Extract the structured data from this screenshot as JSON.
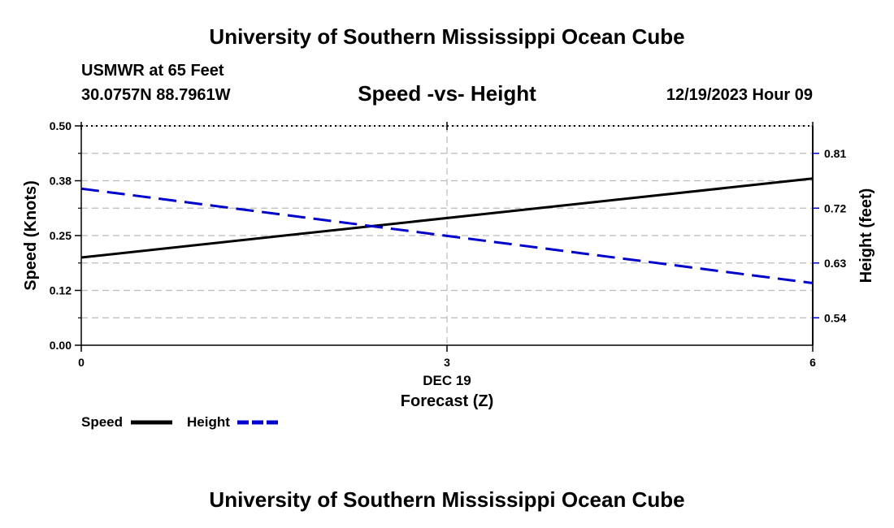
{
  "header": {
    "title": "University of Southern Mississippi Ocean Cube",
    "station": "USMWR at 65 Feet",
    "coordinates": "30.0757N  88.7961W",
    "chart_title": "Speed -vs- Height",
    "datetime": "12/19/2023 Hour 09"
  },
  "footer": {
    "title": "University of Southern Mississippi Ocean Cube"
  },
  "colors": {
    "speed": "#000000",
    "height": "#0000cc",
    "grid": "#bbbbbb"
  },
  "chart_data": {
    "type": "line",
    "title": "Speed -vs- Height",
    "xlabel": "Forecast (Z)",
    "x_sublabel": "DEC 19",
    "ylabel": "Speed (Knots)",
    "y2label": "Height (feet)",
    "x": [
      0,
      6
    ],
    "xlim": [
      0,
      6
    ],
    "x_ticks": [
      0,
      3,
      6
    ],
    "x_tick_labels": [
      "0",
      "3",
      "6"
    ],
    "ylim": [
      0,
      0.5
    ],
    "y_ticks": [
      0.0,
      0.125,
      0.25,
      0.375,
      0.5
    ],
    "y_tick_labels": [
      "0.00",
      "0.12",
      "0.25",
      "0.38",
      "0.50"
    ],
    "y2lim": [
      0.495,
      0.855
    ],
    "y2_ticks": [
      0.54,
      0.63,
      0.72,
      0.81
    ],
    "y2_tick_labels": [
      "0.54",
      "0.63",
      "0.72",
      "0.81"
    ],
    "series": [
      {
        "name": "Speed",
        "axis": "left",
        "style": "solid",
        "x": [
          0,
          6
        ],
        "values": [
          0.2,
          0.38
        ]
      },
      {
        "name": "Height",
        "axis": "right",
        "style": "dashed",
        "x": [
          0,
          6
        ],
        "values": [
          0.752,
          0.597
        ]
      }
    ],
    "legend": [
      "Speed",
      "Height"
    ],
    "grid": true
  }
}
